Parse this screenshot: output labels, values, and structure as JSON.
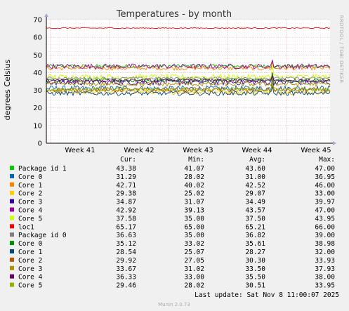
{
  "chart_data": {
    "type": "line",
    "title": "Temperatures - by month",
    "ylabel": "degrees Celsius",
    "ylim": [
      0,
      70
    ],
    "yticks": [
      "0",
      "10",
      "20",
      "30",
      "40",
      "50",
      "60",
      "70"
    ],
    "x_ticks": [
      "Week 41",
      "Week 42",
      "Week 43",
      "Week 44",
      "Week 45"
    ],
    "grid": true,
    "side_label": "RRDTOOL / TOBI OETIKER",
    "legend_headers": {
      "cur": "Cur:",
      "min": "Min:",
      "avg": "Avg:",
      "max": "Max:"
    },
    "series": [
      {
        "name": "Package id 1",
        "color": "#00cc00",
        "cur": "43.38",
        "min": "41.07",
        "avg": "43.60",
        "max": "47.00"
      },
      {
        "name": "Core 0",
        "color": "#0066b3",
        "cur": "31.29",
        "min": "28.02",
        "avg": "31.00",
        "max": "36.95"
      },
      {
        "name": "Core 1",
        "color": "#ff8000",
        "cur": "42.71",
        "min": "40.02",
        "avg": "42.52",
        "max": "46.00"
      },
      {
        "name": "Core 2",
        "color": "#ffcc00",
        "cur": "29.38",
        "min": "25.02",
        "avg": "29.07",
        "max": "33.00"
      },
      {
        "name": "Core 3",
        "color": "#330099",
        "cur": "34.87",
        "min": "31.07",
        "avg": "34.49",
        "max": "39.97"
      },
      {
        "name": "Core 4",
        "color": "#990099",
        "cur": "42.92",
        "min": "39.13",
        "avg": "43.57",
        "max": "47.00"
      },
      {
        "name": "Core 5",
        "color": "#ccff00",
        "cur": "37.58",
        "min": "35.00",
        "avg": "37.50",
        "max": "43.95"
      },
      {
        "name": "loc1",
        "color": "#ff0000",
        "cur": "65.17",
        "min": "65.00",
        "avg": "65.21",
        "max": "66.00"
      },
      {
        "name": "Package id 0",
        "color": "#808080",
        "cur": "36.63",
        "min": "35.00",
        "avg": "36.82",
        "max": "39.00"
      },
      {
        "name": "Core 0",
        "color": "#008f00",
        "cur": "35.12",
        "min": "33.02",
        "avg": "35.61",
        "max": "38.98"
      },
      {
        "name": "Core 1",
        "color": "#00487d",
        "cur": "28.54",
        "min": "25.07",
        "avg": "28.27",
        "max": "32.00"
      },
      {
        "name": "Core 2",
        "color": "#b35a00",
        "cur": "29.92",
        "min": "27.05",
        "avg": "30.30",
        "max": "33.93"
      },
      {
        "name": "Core 3",
        "color": "#b38f00",
        "cur": "33.67",
        "min": "31.02",
        "avg": "33.50",
        "max": "37.93"
      },
      {
        "name": "Core 4",
        "color": "#6b006b",
        "cur": "36.33",
        "min": "33.00",
        "avg": "35.50",
        "max": "38.00"
      },
      {
        "name": "Core 5",
        "color": "#8fb300",
        "cur": "29.46",
        "min": "28.02",
        "avg": "30.51",
        "max": "33.95"
      }
    ]
  },
  "footer": {
    "last_update": "Last update: Sat Nov  8 11:00:07 2025",
    "version": "Munin 2.0.73"
  }
}
